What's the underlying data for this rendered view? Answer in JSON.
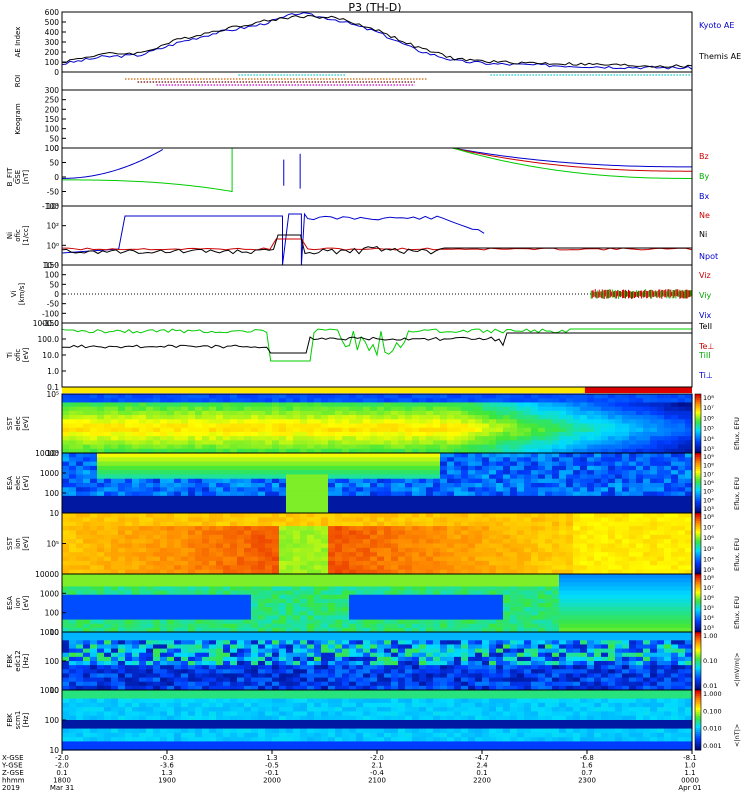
{
  "title": "P3 (TH-D)",
  "chart_data": [
    {
      "type": "line",
      "panel": "AE Index",
      "ylabel": "AE Index",
      "ylim": [
        0,
        600
      ],
      "yticks": [
        "600",
        "500",
        "400",
        "300",
        "200",
        "100",
        "0"
      ],
      "x": [
        "1800",
        "1830",
        "1900",
        "1915",
        "1930",
        "1945",
        "2000",
        "2015",
        "2030",
        "2045",
        "2100",
        "2130",
        "2200",
        "2230",
        "2300",
        "2330",
        "0000"
      ],
      "series": [
        {
          "name": "Kyoto AE",
          "color": "#0000cc",
          "values": [
            80,
            150,
            170,
            300,
            400,
            470,
            590,
            520,
            400,
            220,
            110,
            80,
            70,
            60,
            50,
            45,
            40
          ]
        },
        {
          "name": "Themis AE",
          "color": "#000000",
          "values": [
            100,
            180,
            190,
            330,
            420,
            500,
            560,
            540,
            420,
            250,
            130,
            100,
            90,
            80,
            70,
            60,
            55
          ]
        }
      ]
    },
    {
      "type": "line",
      "panel": "ROI",
      "ylabel": "ROI"
    },
    {
      "type": "line",
      "panel": "Keogram",
      "ylabel": "Keogram",
      "yticks": [
        "300",
        "250",
        "200",
        "150",
        "100",
        "50",
        "0"
      ]
    },
    {
      "type": "line",
      "panel": "B FIT GSE",
      "ylabel": "B_FIT\nGSE\n[nT]",
      "ylim": [
        -100,
        100
      ],
      "yticks": [
        "100",
        "50",
        "0",
        "-50",
        "-100"
      ],
      "series": [
        {
          "name": "Bz",
          "color": "#cc0000"
        },
        {
          "name": "By",
          "color": "#00cc00"
        },
        {
          "name": "Bx",
          "color": "#0000cc"
        }
      ]
    },
    {
      "type": "line",
      "panel": "Ni",
      "ylabel": "Ni\nofic\n[1/cc]",
      "yticks": [
        "10⁴",
        "10²",
        "10⁰",
        "10⁻¹"
      ],
      "series": [
        {
          "name": "Ne",
          "color": "#cc0000"
        },
        {
          "name": "Ni",
          "color": "#000000"
        },
        {
          "name": "Npot",
          "color": "#0000cc"
        }
      ]
    },
    {
      "type": "line",
      "panel": "Vi",
      "ylabel": "Vi\n[km/s]",
      "ylim": [
        -150,
        150
      ],
      "yticks": [
        "150",
        "100",
        "50",
        "0",
        "-50",
        "-100",
        "-150"
      ],
      "series": [
        {
          "name": "Viz",
          "color": "#cc0000"
        },
        {
          "name": "Viy",
          "color": "#00cc00"
        },
        {
          "name": "Vix",
          "color": "#0000cc"
        }
      ]
    },
    {
      "type": "line",
      "panel": "Ti",
      "ylabel": "Ti\nofic\n[eV]",
      "yticks": [
        "1000.0",
        "100.0",
        "10.0",
        "1.0",
        "0.1"
      ],
      "series": [
        {
          "name": "TeII",
          "color": "#000000"
        },
        {
          "name": "Te⊥",
          "color": "#cc0000"
        },
        {
          "name": "TiII",
          "color": "#00cc00"
        },
        {
          "name": "Ti⊥",
          "color": "#0000cc"
        }
      ]
    },
    {
      "type": "heatmap",
      "panel": "SST",
      "ylabel": "SST\nelec\n[eV]",
      "yticks": [
        "10⁵",
        "10⁴"
      ],
      "colorbar_title": "Eflux, EFU",
      "cb_ticks": [
        "10⁸",
        "10⁷",
        "10⁶",
        "10⁵",
        "10⁴",
        "10³"
      ]
    },
    {
      "type": "heatmap",
      "panel": "ESA",
      "ylabel": "ESA\nelec\n[eV]",
      "yticks": [
        "10000",
        "1000",
        "100",
        "10"
      ],
      "colorbar_title": "Eflux, EFU",
      "cb_ticks": [
        "10⁹",
        "10⁸",
        "10⁷",
        "10⁶",
        "10⁵",
        "10⁴",
        "10³"
      ]
    },
    {
      "type": "heatmap",
      "panel": "SST2",
      "ylabel": "SST\nion\n[eV]",
      "yticks": [
        "10⁵"
      ],
      "colorbar_title": "Eflux, EFU",
      "cb_ticks": [
        "10⁸",
        "10⁷",
        "10⁶",
        "10⁵",
        "10⁴",
        "10³"
      ]
    },
    {
      "type": "heatmap",
      "panel": "ESA2",
      "ylabel": "ESA\nion\n[eV]",
      "yticks": [
        "10000",
        "1000",
        "100",
        "10"
      ],
      "colorbar_title": "Eflux, EFU",
      "cb_ticks": [
        "10⁸",
        "10⁷",
        "10⁶",
        "10⁵",
        "10⁴",
        "10³"
      ]
    },
    {
      "type": "heatmap",
      "panel": "FBK edc12",
      "ylabel": "FBK\nedc12\n[Hz]",
      "yticks": [
        "1000",
        "100",
        "10"
      ],
      "colorbar_title": "<|mV/m|>",
      "cb_ticks": [
        "1.00",
        "0.10",
        "0.01"
      ]
    },
    {
      "type": "heatmap",
      "panel": "FBK scm1",
      "ylabel": "FBK\nscm1\n[Hz]",
      "yticks": [
        "1000",
        "100",
        "10"
      ],
      "colorbar_title": "<|nT|>",
      "cb_ticks": [
        "1.000",
        "0.100",
        "0.010",
        "0.001"
      ]
    }
  ],
  "footer": {
    "row_labels": [
      "X-GSE",
      "Y-GSE",
      "Z-GSE",
      "hhmm",
      "2019"
    ],
    "columns": [
      [
        "-2.0",
        "-2.0",
        "0.1",
        "1800",
        "Mar 31"
      ],
      [
        "-0.3",
        "-3.6",
        "1.3",
        "1900",
        ""
      ],
      [
        "1.3",
        "-0.5",
        "-0.1",
        "2000",
        ""
      ],
      [
        "-2.0",
        "2.1",
        "-0.4",
        "2100",
        ""
      ],
      [
        "-4.7",
        "2.4",
        "0.1",
        "2200",
        ""
      ],
      [
        "-6.8",
        "1.6",
        "0.7",
        "2300",
        ""
      ],
      [
        "-8.1",
        "1.0",
        "1.1",
        "0000",
        "Apr 01"
      ]
    ]
  }
}
